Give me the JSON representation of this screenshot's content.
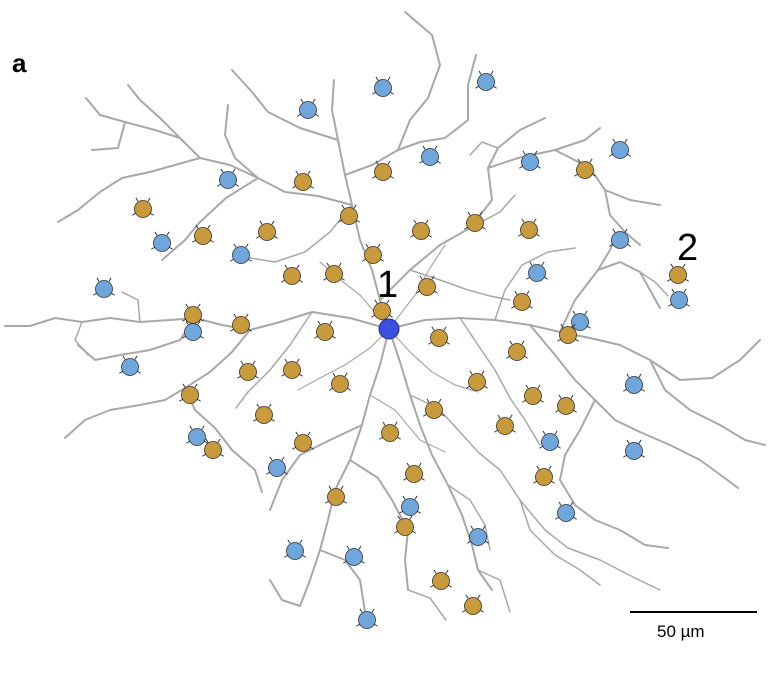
{
  "figure": {
    "panel_label": "a",
    "cell_labels": {
      "first": "1",
      "second": "2"
    },
    "scale_bar_label": "50 µm"
  },
  "colors": {
    "dendrite": "#a8a8a8",
    "soma": "#3b4fe0",
    "blue_contact": "#6fa6dc",
    "gold_contact": "#c89a3c",
    "outline": "#333333"
  }
}
